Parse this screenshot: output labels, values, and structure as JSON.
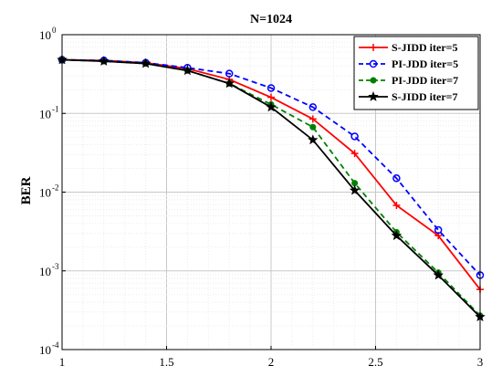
{
  "chart_data": {
    "type": "line",
    "title": "N=1024",
    "xlabel": "",
    "ylabel": "BER",
    "xlim": [
      1,
      3
    ],
    "ylim": [
      0.0001,
      1
    ],
    "yscale": "log",
    "grid": true,
    "legend_position": "top-right",
    "x_ticks": [
      1,
      1.5,
      2,
      2.5,
      3
    ],
    "x_tick_labels": [
      "1",
      "1.5",
      "2",
      "2.5",
      "3"
    ],
    "y_ticks": [
      {
        "value": 1,
        "base": "10",
        "exp": "0"
      },
      {
        "value": 0.1,
        "base": "10",
        "exp": "-1"
      },
      {
        "value": 0.01,
        "base": "10",
        "exp": "-2"
      },
      {
        "value": 0.001,
        "base": "10",
        "exp": "-3"
      },
      {
        "value": 0.0001,
        "base": "10",
        "exp": "-4"
      }
    ],
    "x": [
      1.0,
      1.2,
      1.4,
      1.6,
      1.8,
      2.0,
      2.2,
      2.4,
      2.6,
      2.8,
      3.0
    ],
    "series": [
      {
        "name": "S-JIDD  iter=5",
        "color": "#ff0000",
        "line": "solid",
        "marker": "plus",
        "values": [
          0.48,
          0.47,
          0.44,
          0.37,
          0.27,
          0.16,
          0.085,
          0.031,
          0.0068,
          0.0028,
          0.00058
        ]
      },
      {
        "name": "PI-JDD  iter=5",
        "color": "#0000ff",
        "line": "dashed",
        "marker": "circle",
        "values": [
          0.48,
          0.47,
          0.44,
          0.38,
          0.32,
          0.21,
          0.12,
          0.051,
          0.015,
          0.0033,
          0.00088
        ]
      },
      {
        "name": "PI-JDD  iter=7",
        "color": "#008000",
        "line": "dashed",
        "marker": "dot",
        "values": [
          0.48,
          0.46,
          0.43,
          0.35,
          0.24,
          0.13,
          0.067,
          0.013,
          0.0031,
          0.00095,
          0.00027
        ]
      },
      {
        "name": "S-JIDD  iter=7",
        "color": "#000000",
        "line": "solid",
        "marker": "star",
        "values": [
          0.48,
          0.46,
          0.43,
          0.35,
          0.24,
          0.12,
          0.046,
          0.0105,
          0.0028,
          0.00088,
          0.00026
        ]
      }
    ]
  }
}
